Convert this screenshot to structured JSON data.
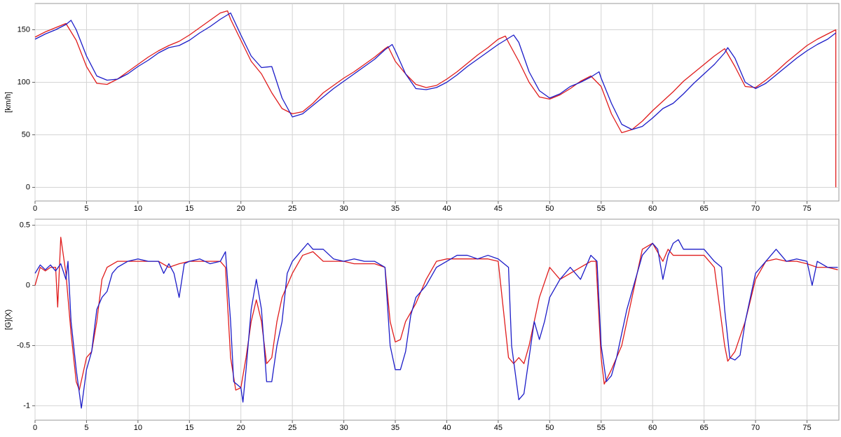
{
  "chart_data": [
    {
      "type": "line",
      "y_label": "[km/h]",
      "xlim": [
        0,
        78.1
      ],
      "ylim": [
        -13,
        175
      ],
      "xticks": [
        0,
        5,
        10,
        15,
        20,
        25,
        30,
        35,
        40,
        45,
        50,
        55,
        60,
        65,
        70,
        75
      ],
      "yticks": [
        0,
        50,
        100,
        150
      ],
      "grid": true,
      "series": [
        {
          "color": "#e01c1c",
          "x": [
            0,
            1,
            2,
            3,
            4,
            5,
            6,
            7,
            8,
            9,
            10,
            11,
            12,
            13,
            14,
            15,
            16,
            17,
            18,
            18.7,
            19,
            20,
            21,
            22,
            23,
            24,
            25,
            26,
            27,
            28,
            29,
            30,
            31,
            32,
            33,
            34,
            34.3,
            35,
            36,
            37,
            38,
            39,
            40,
            41,
            42,
            43,
            44,
            45,
            45.7,
            46,
            47,
            48,
            49,
            50,
            51,
            52,
            53,
            54,
            55,
            56,
            57,
            58,
            59,
            60,
            61,
            62,
            63,
            64,
            65,
            66,
            67,
            68,
            69,
            70,
            71,
            72,
            73,
            74,
            75,
            76,
            77,
            77.8,
            77.8
          ],
          "values": [
            143,
            148,
            152,
            156,
            140,
            115,
            99,
            98,
            103,
            110,
            117,
            124,
            130,
            135,
            139,
            145,
            152,
            159,
            166,
            168,
            160,
            140,
            120,
            108,
            90,
            75,
            70,
            72,
            80,
            90,
            97,
            104,
            110,
            117,
            124,
            132,
            134,
            120,
            108,
            98,
            95,
            97,
            103,
            110,
            118,
            126,
            133,
            141,
            144,
            138,
            120,
            100,
            86,
            84,
            88,
            94,
            101,
            106,
            96,
            70,
            52,
            55,
            63,
            73,
            82,
            91,
            101,
            109,
            117,
            125,
            132,
            115,
            96,
            95,
            102,
            110,
            119,
            127,
            135,
            141,
            146,
            150,
            0
          ]
        },
        {
          "color": "#1c1cc8",
          "x": [
            0,
            1,
            2,
            3,
            3.5,
            4,
            5,
            6,
            7,
            8,
            9,
            10,
            11,
            12,
            13,
            14,
            15,
            16,
            17,
            18,
            19,
            20,
            21,
            22,
            23,
            24,
            25,
            26,
            27,
            28,
            29,
            30,
            31,
            32,
            33,
            34,
            34.7,
            35,
            36,
            37,
            38,
            39,
            40,
            41,
            42,
            43,
            44,
            45,
            46,
            46.5,
            47,
            48,
            49,
            50,
            51,
            52,
            53,
            54,
            54.8,
            55,
            56,
            57,
            58,
            59,
            60,
            61,
            62,
            63,
            64,
            65,
            66,
            67,
            67.3,
            68,
            69,
            70,
            71,
            72,
            73,
            74,
            75,
            76,
            77,
            77.8
          ],
          "values": [
            141,
            146,
            150,
            155,
            159,
            150,
            125,
            106,
            102,
            103,
            108,
            115,
            121,
            128,
            133,
            135,
            140,
            147,
            153,
            160,
            166,
            145,
            125,
            114,
            115,
            85,
            67,
            70,
            78,
            86,
            94,
            101,
            108,
            115,
            122,
            131,
            136,
            130,
            108,
            94,
            93,
            95,
            100,
            107,
            115,
            122,
            129,
            136,
            142,
            145,
            138,
            110,
            92,
            85,
            89,
            96,
            100,
            105,
            110,
            104,
            80,
            60,
            55,
            58,
            66,
            75,
            80,
            89,
            99,
            108,
            117,
            128,
            133,
            123,
            100,
            94,
            99,
            107,
            115,
            123,
            130,
            136,
            141,
            147
          ]
        }
      ]
    },
    {
      "type": "line",
      "y_label": "[G](X)",
      "xlim": [
        0,
        78.1
      ],
      "ylim": [
        -1.12,
        0.55
      ],
      "xticks": [
        0,
        5,
        10,
        15,
        20,
        25,
        30,
        35,
        40,
        45,
        50,
        55,
        60,
        65,
        70,
        75
      ],
      "yticks": [
        0.5,
        0,
        -0.5,
        -1
      ],
      "grid": true,
      "series": [
        {
          "color": "#e01c1c",
          "x": [
            0,
            0.5,
            1,
            1.5,
            2,
            2.2,
            2.5,
            3,
            3.5,
            4,
            4.3,
            5,
            5.5,
            6,
            6.5,
            7,
            8,
            9,
            10,
            11,
            12,
            13,
            14,
            15,
            16,
            17,
            18,
            18.5,
            19,
            19.5,
            20,
            20.5,
            21,
            21.5,
            22,
            22.5,
            23,
            23.5,
            24,
            25,
            26,
            27,
            28,
            29,
            30,
            31,
            32,
            33,
            34,
            34.5,
            35,
            35.5,
            36,
            37,
            38,
            39,
            40,
            41,
            42,
            43,
            44,
            45,
            45.5,
            46,
            46.5,
            47,
            47.5,
            48,
            49,
            50,
            51,
            52,
            53,
            54,
            54.5,
            55,
            55.3,
            56,
            57,
            58,
            59,
            60,
            61,
            61.5,
            62,
            63,
            64,
            65,
            66,
            67,
            67.3,
            68,
            69,
            70,
            71,
            72,
            73,
            74,
            75,
            76,
            77,
            78
          ],
          "values": [
            0,
            0.15,
            0.12,
            0.15,
            0.15,
            -0.18,
            0.4,
            0.1,
            -0.4,
            -0.8,
            -0.87,
            -0.6,
            -0.55,
            -0.3,
            0.05,
            0.15,
            0.2,
            0.2,
            0.2,
            0.2,
            0.2,
            0.15,
            0.18,
            0.2,
            0.2,
            0.2,
            0.2,
            0.15,
            -0.6,
            -0.87,
            -0.85,
            -0.6,
            -0.3,
            -0.12,
            -0.3,
            -0.65,
            -0.6,
            -0.3,
            -0.1,
            0.1,
            0.25,
            0.28,
            0.2,
            0.2,
            0.2,
            0.18,
            0.18,
            0.18,
            0.15,
            -0.3,
            -0.47,
            -0.45,
            -0.3,
            -0.15,
            0.05,
            0.2,
            0.22,
            0.22,
            0.22,
            0.22,
            0.22,
            0.2,
            -0.2,
            -0.6,
            -0.65,
            -0.6,
            -0.65,
            -0.5,
            -0.1,
            0.15,
            0.05,
            0.1,
            0.15,
            0.2,
            0.2,
            -0.6,
            -0.82,
            -0.7,
            -0.5,
            -0.1,
            0.3,
            0.35,
            0.2,
            0.3,
            0.25,
            0.25,
            0.25,
            0.25,
            0.15,
            -0.5,
            -0.63,
            -0.55,
            -0.3,
            0.05,
            0.2,
            0.22,
            0.2,
            0.2,
            0.18,
            0.15,
            0.15,
            0.13
          ]
        },
        {
          "color": "#1c1cc8",
          "x": [
            0,
            0.5,
            1,
            1.5,
            2,
            2.5,
            3,
            3.2,
            3.5,
            4,
            4.5,
            5,
            5.5,
            6,
            6.5,
            7,
            7.5,
            8,
            9,
            10,
            11,
            12,
            12.5,
            13,
            13.5,
            14,
            14.5,
            15,
            16,
            17,
            18,
            18.5,
            19,
            19.3,
            20,
            20.2,
            20.5,
            21,
            21.5,
            22,
            22.5,
            23,
            23.5,
            24,
            24.5,
            25,
            26,
            26.5,
            27,
            28,
            29,
            30,
            31,
            32,
            33,
            34,
            34.5,
            35,
            35.5,
            36,
            36.5,
            37,
            38,
            39,
            40,
            41,
            42,
            43,
            44,
            45,
            46,
            46.3,
            47,
            47.5,
            48,
            48.5,
            49,
            49.5,
            50,
            51,
            52,
            53,
            54,
            54.6,
            55,
            55.5,
            56,
            56.5,
            57,
            57.5,
            58,
            59,
            60,
            60.5,
            61,
            61.5,
            62,
            62.5,
            63,
            64,
            65,
            66,
            66.7,
            67,
            67.5,
            68,
            68.5,
            69,
            69.5,
            70,
            71,
            72,
            73,
            74,
            75,
            75.5,
            76,
            77,
            78
          ],
          "values": [
            0.1,
            0.17,
            0.13,
            0.17,
            0.12,
            0.18,
            0.05,
            0.2,
            -0.3,
            -0.7,
            -1.02,
            -0.7,
            -0.55,
            -0.2,
            -0.1,
            -0.05,
            0.1,
            0.15,
            0.2,
            0.22,
            0.2,
            0.2,
            0.1,
            0.18,
            0.1,
            -0.1,
            0.18,
            0.2,
            0.22,
            0.18,
            0.2,
            0.28,
            -0.3,
            -0.8,
            -0.85,
            -0.97,
            -0.7,
            -0.2,
            0.05,
            -0.2,
            -0.8,
            -0.8,
            -0.5,
            -0.3,
            0.1,
            0.2,
            0.3,
            0.35,
            0.3,
            0.3,
            0.22,
            0.2,
            0.22,
            0.2,
            0.2,
            0.15,
            -0.5,
            -0.7,
            -0.7,
            -0.55,
            -0.25,
            -0.1,
            0,
            0.15,
            0.2,
            0.25,
            0.25,
            0.22,
            0.25,
            0.22,
            0.15,
            -0.5,
            -0.95,
            -0.9,
            -0.6,
            -0.3,
            -0.45,
            -0.3,
            -0.1,
            0.05,
            0.15,
            0.05,
            0.25,
            0.2,
            -0.5,
            -0.8,
            -0.75,
            -0.6,
            -0.4,
            -0.2,
            -0.05,
            0.25,
            0.35,
            0.3,
            0.05,
            0.25,
            0.35,
            0.38,
            0.3,
            0.3,
            0.3,
            0.2,
            0.15,
            -0.2,
            -0.6,
            -0.62,
            -0.58,
            -0.3,
            -0.1,
            0.1,
            0.2,
            0.3,
            0.2,
            0.22,
            0.2,
            0,
            0.2,
            0.15,
            0.15
          ]
        }
      ]
    }
  ]
}
